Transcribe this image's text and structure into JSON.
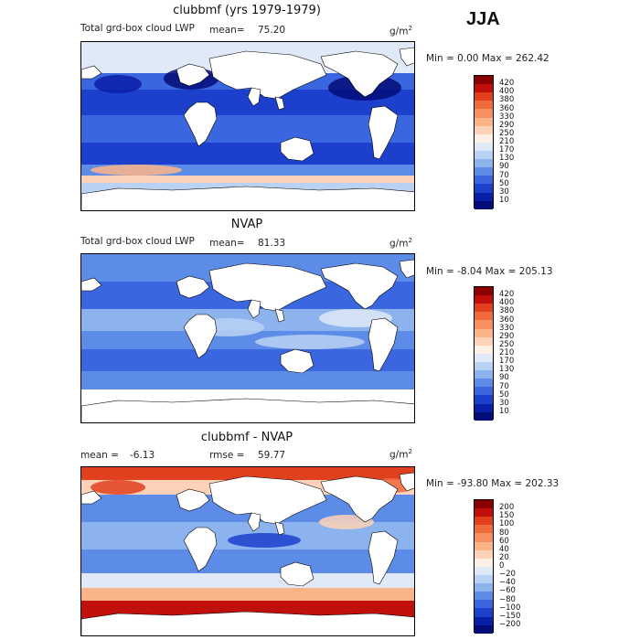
{
  "season_label": "JJA",
  "units_base": "g/m",
  "units_exp": "2",
  "panels": [
    {
      "title": "clubbmf (yrs 1979-1979)",
      "left_label": "Total grd-box cloud LWP",
      "stat_label": "mean=",
      "stat_value": "75.20",
      "minmax": "Min =    0.00 Max = 262.42",
      "colorbar": {
        "labels": [
          "420",
          "400",
          "380",
          "360",
          "330",
          "290",
          "250",
          "210",
          "170",
          "130",
          "90",
          "70",
          "50",
          "30",
          "10"
        ],
        "colors": [
          "#8b0000",
          "#c1100c",
          "#e0401e",
          "#f06a3c",
          "#f79060",
          "#fbb488",
          "#fdd2b8",
          "#fdf1e6",
          "#dfe9f8",
          "#b9d1f3",
          "#8db3ee",
          "#5d8ce8",
          "#3a66df",
          "#1c3fcc",
          "#0a1fa8",
          "#030d78"
        ]
      },
      "map_style": "lwp_model"
    },
    {
      "title": "NVAP",
      "left_label": "Total grd-box cloud LWP",
      "stat_label": "mean=",
      "stat_value": "81.33",
      "minmax": "Min =  -8.04 Max = 205.13",
      "colorbar": {
        "labels": [
          "420",
          "400",
          "380",
          "360",
          "330",
          "290",
          "250",
          "210",
          "170",
          "130",
          "90",
          "70",
          "50",
          "30",
          "10"
        ],
        "colors": [
          "#8b0000",
          "#c1100c",
          "#e0401e",
          "#f06a3c",
          "#f79060",
          "#fbb488",
          "#fdd2b8",
          "#fdf1e6",
          "#dfe9f8",
          "#b9d1f3",
          "#8db3ee",
          "#5d8ce8",
          "#3a66df",
          "#1c3fcc",
          "#0a1fa8",
          "#030d78"
        ]
      },
      "map_style": "lwp_obs"
    },
    {
      "title": "clubbmf - NVAP",
      "left_label": "mean =",
      "left_value": "-6.13",
      "stat_label": "rmse =",
      "stat_value": "59.77",
      "minmax": "Min = -93.80 Max = 202.33",
      "colorbar": {
        "labels": [
          "200",
          "150",
          "100",
          "80",
          "60",
          "40",
          "20",
          "0",
          "−20",
          "−40",
          "−60",
          "−80",
          "−100",
          "−150",
          "−200"
        ],
        "colors": [
          "#8b0000",
          "#c1100c",
          "#e0401e",
          "#f06a3c",
          "#f79060",
          "#fbb488",
          "#fdd2b8",
          "#fdf1e6",
          "#dfe9f8",
          "#b9d1f3",
          "#8db3ee",
          "#5d8ce8",
          "#3a66df",
          "#1c3fcc",
          "#0a1fa8",
          "#030d78"
        ]
      },
      "map_style": "diff"
    }
  ]
}
